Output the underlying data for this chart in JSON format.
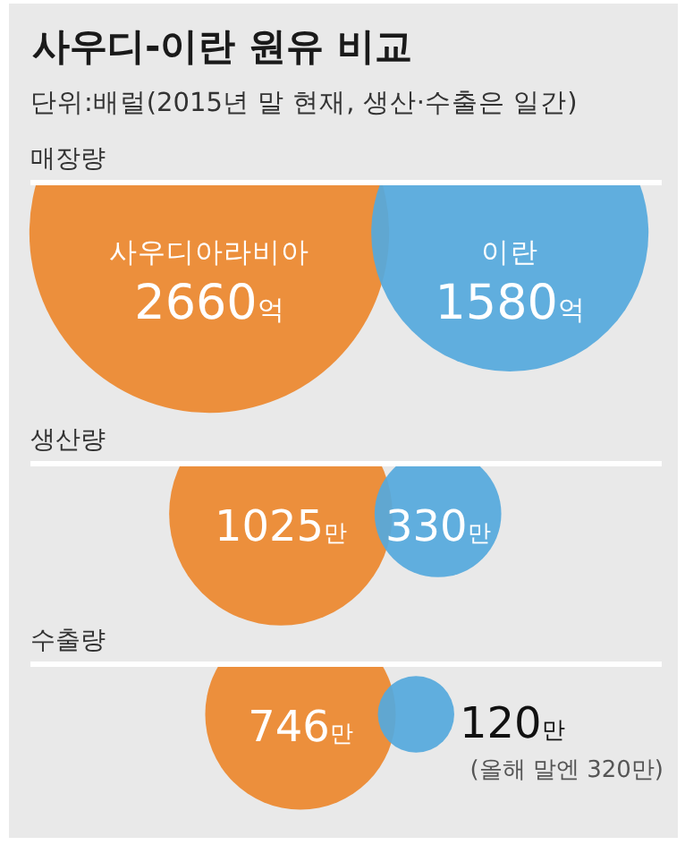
{
  "chart_data": [
    {
      "type": "other",
      "title": "사우디-이란 원유 비교",
      "subtitle": "단위:배럴(2015년 말 현재, 생산·수출은 일간)"
    },
    {
      "type": "other",
      "title": "매장량",
      "categories": [
        "사우디아라비아",
        "이란"
      ],
      "values": [
        2660,
        1580
      ],
      "value_labels": [
        "2660억",
        "1580억"
      ],
      "colors": [
        "#ec8f3c",
        "#55a9dd"
      ]
    },
    {
      "type": "other",
      "title": "생산량",
      "categories": [
        null,
        null
      ],
      "values": [
        1025,
        330
      ],
      "value_labels": [
        "1025만",
        "330만"
      ],
      "colors": [
        "#ec8f3c",
        "#55a9dd"
      ]
    },
    {
      "type": "other",
      "title": "수출량",
      "categories": [
        null,
        null
      ],
      "values": [
        746,
        120
      ],
      "value_labels": [
        "746만",
        "120만"
      ],
      "annotations": [
        "(올해 말엔 320만)"
      ],
      "colors": [
        "#ec8f3c",
        "#55a9dd"
      ]
    }
  ]
}
